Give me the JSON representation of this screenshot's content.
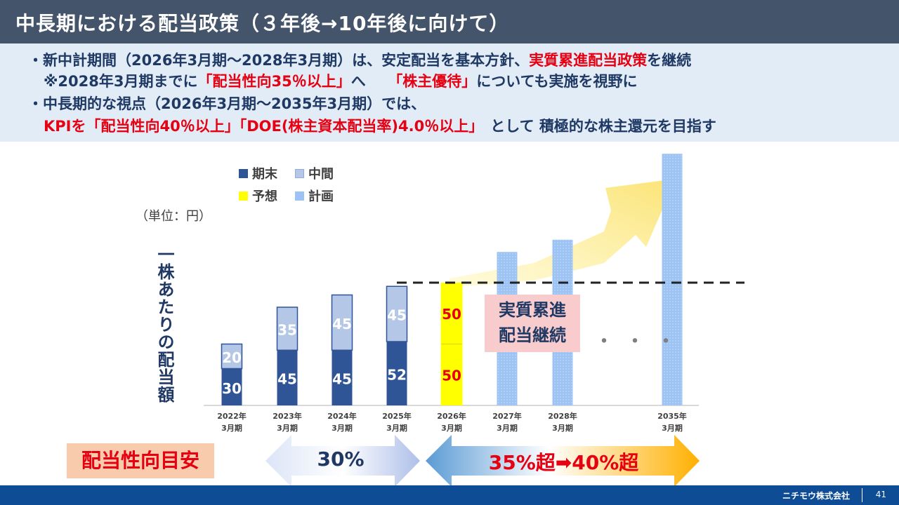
{
  "header": {
    "title": "中長期における配当政策（３年後→10年後に向けて）"
  },
  "bullets": {
    "line1_a": "・新中計期間（2026年3月期～2028年3月期）は、安定配当を基本方針、",
    "line1_b": "実質累進配当政策",
    "line1_c": "を継続",
    "line2_a": "※2028年3月期までに",
    "line2_b": "「配当性向35％以上」",
    "line2_c": "へ　　",
    "line2_d": "「株主優待」",
    "line2_e": "についても実施を視野に",
    "line3": "・中長期的な視点（2026年3月期～2035年3月期）では、",
    "line4_a": "KPIを「配当性向40％以上」「DOE(株主資本配当率)4.0％以上」",
    "line4_b": "として 積極的な株主還元を目指す"
  },
  "chart_data": {
    "type": "bar",
    "unit_label": "（単位：円）",
    "ylabel": "一株あたりの配当額",
    "legend": [
      {
        "name": "期末",
        "color": "#2f5597"
      },
      {
        "name": "中間",
        "color": "#b4c7e7"
      },
      {
        "name": "予想",
        "color": "#ffff00"
      },
      {
        "name": "計画",
        "color": "#9dc3f5"
      }
    ],
    "categories": [
      [
        "2022年",
        "3月期"
      ],
      [
        "2023年",
        "3月期"
      ],
      [
        "2024年",
        "3月期"
      ],
      [
        "2025年",
        "3月期"
      ],
      [
        "2026年",
        "3月期"
      ],
      [
        "2027年",
        "3月期"
      ],
      [
        "2028年",
        "3月期"
      ],
      [
        "2035年",
        "3月期"
      ]
    ],
    "series": [
      {
        "name": "期末",
        "values": [
          30,
          45,
          45,
          52,
          null,
          null,
          null,
          null
        ]
      },
      {
        "name": "中間",
        "values": [
          20,
          35,
          45,
          45,
          null,
          null,
          null,
          null
        ]
      },
      {
        "name": "予想",
        "values": [
          null,
          null,
          null,
          null,
          100,
          null,
          null,
          null
        ],
        "labels": [
          "50",
          "50"
        ]
      },
      {
        "name": "計画",
        "values": [
          null,
          null,
          null,
          null,
          null,
          125,
          135,
          205
        ]
      }
    ],
    "reference_line": 100,
    "callout": [
      "実質累進",
      "配当継続"
    ],
    "ellipsis": "・・・"
  },
  "payout": {
    "label": "配当性向目安",
    "current": "30%",
    "target_a": "35%超",
    "arrow_glyph": "➡",
    "target_b": "40%超"
  },
  "footer": {
    "brand": "ニチモウ株式会社",
    "page": "41"
  }
}
